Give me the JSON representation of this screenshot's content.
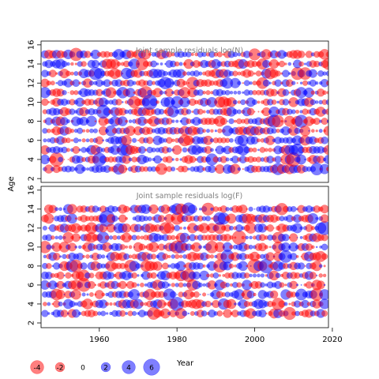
{
  "chart_data": {
    "type": "scatter",
    "subtype": "bubble-residuals",
    "ylabel": "Age",
    "xlabel": "Year",
    "x_range": [
      1945,
      2019
    ],
    "x_ticks": [
      1960,
      1980,
      2000,
      2020
    ],
    "y_ticks": [
      2,
      4,
      6,
      8,
      10,
      12,
      14,
      16
    ],
    "colors": {
      "positive": "#0000ff",
      "negative": "#ff0000",
      "fill_alpha": 0.5,
      "frame": "#000000",
      "title": "#808080"
    },
    "panels": [
      {
        "title": "Joint sample residuals log(N)",
        "ylim": [
          1.6,
          16.4
        ],
        "ages": [
          3,
          15
        ],
        "years": [
          1946,
          2019
        ],
        "seed": 17
      },
      {
        "title": "Joint sample residuals log(F)",
        "ylim": [
          1.5,
          16.4
        ],
        "ages": [
          3,
          14
        ],
        "years": [
          1946,
          2018
        ],
        "seed": 91
      }
    ],
    "legend": {
      "title": "Year",
      "entries": [
        {
          "label": "-4",
          "value": -4
        },
        {
          "label": "-2",
          "value": -2
        },
        {
          "label": "0",
          "value": 0
        },
        {
          "label": "2",
          "value": 2
        },
        {
          "label": "4",
          "value": 4
        },
        {
          "label": "6",
          "value": 6
        }
      ]
    }
  }
}
